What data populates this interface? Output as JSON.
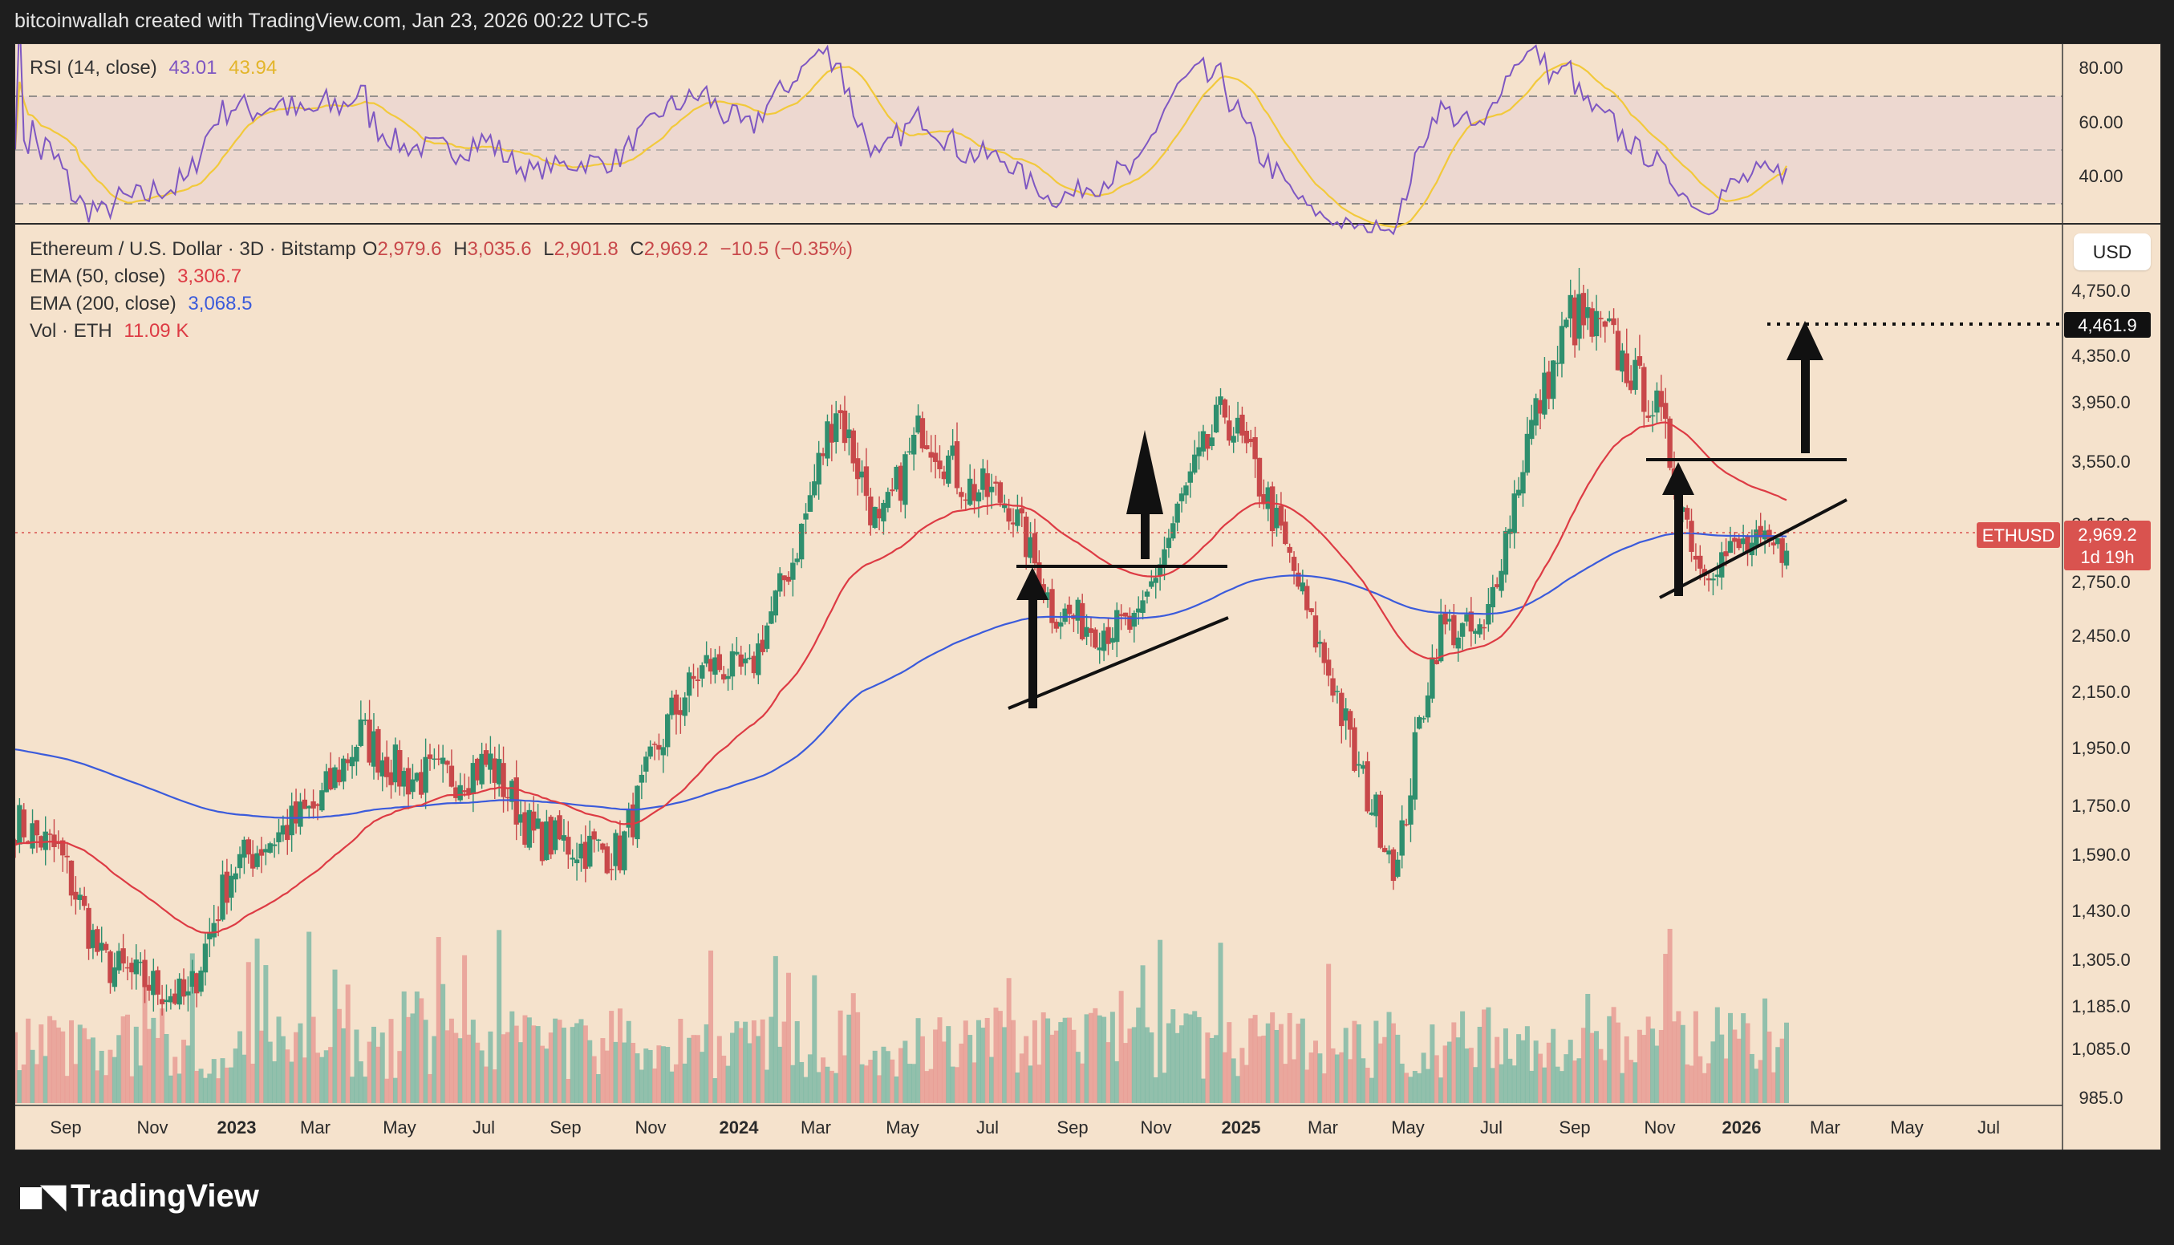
{
  "header": {
    "text": "bitcoinwallah created with TradingView.com, Jan 23, 2026 00:22 UTC-5"
  },
  "rsi": {
    "label": "RSI (14, close)",
    "value": "43.01",
    "ma_value": "43.94"
  },
  "main": {
    "symbol": "Ethereum / U.S. Dollar · 3D · Bitstamp",
    "o_label": "O",
    "o": "2,979.6",
    "h_label": "H",
    "h": "3,035.6",
    "l_label": "L",
    "l": "2,901.8",
    "c_label": "C",
    "c": "2,969.2",
    "change": "−10.5 (−0.35%)"
  },
  "ema50": {
    "label": "EMA (50, close)",
    "value": "3,306.7"
  },
  "ema200": {
    "label": "EMA (200, close)",
    "value": "3,068.5"
  },
  "vol": {
    "label": "Vol · ETH",
    "value": "11.09 K"
  },
  "currency_button": "USD",
  "footer": {
    "brand": "TradingView"
  },
  "price_tags": {
    "target": "4,461.9",
    "symbol": "ETHUSD",
    "last": "2,969.2",
    "countdown": "1d 19h"
  },
  "colors": {
    "up": "#2f8f6e",
    "down": "#c8484a",
    "ema50": "#dd3b44",
    "ema200": "#3b5bdb",
    "rsi": "#7e57c2",
    "rsi_ma": "#f2c93b",
    "vol_up": "#79b8a4",
    "vol_down": "#e79891"
  },
  "chart_data": {
    "type": "candlestick",
    "title": "Ethereum / U.S. Dollar · 3D · Bitstamp",
    "x_ticks": [
      "Sep",
      "Nov",
      "2023",
      "Mar",
      "May",
      "Jul",
      "Sep",
      "Nov",
      "2024",
      "Mar",
      "May",
      "Jul",
      "Sep",
      "Nov",
      "2025",
      "Mar",
      "May",
      "Jul",
      "Sep",
      "Nov",
      "2026",
      "Mar",
      "May",
      "Jul"
    ],
    "y_ticks": [
      "985.0",
      "1,085.0",
      "1,185.0",
      "1,305.0",
      "1,430.0",
      "1,590.0",
      "1,750.0",
      "1,950.0",
      "2,150.0",
      "2,450.0",
      "2,750.0",
      "3,150.0",
      "3,550.0",
      "3,950.0",
      "4,350.0",
      "4,750.0"
    ],
    "rsi_ticks": [
      "80.00",
      "60.00",
      "40.00"
    ],
    "rsi_last": 43.01,
    "rsi_ma_last": 43.94,
    "last_close": 2969.2,
    "ema50_last": 3306.7,
    "ema200_last": 3068.5,
    "target_price": 4461.9,
    "price_path": [
      {
        "date": "Aug 2022",
        "close": 1700
      },
      {
        "date": "Sep 2022",
        "close": 1600
      },
      {
        "date": "Oct 2022",
        "close": 1300
      },
      {
        "date": "Nov 2022",
        "close": 1250
      },
      {
        "date": "Dec 2022",
        "close": 1200
      },
      {
        "date": "Jan 2023",
        "close": 1550
      },
      {
        "date": "Feb 2023",
        "close": 1650
      },
      {
        "date": "Mar 2023",
        "close": 1750
      },
      {
        "date": "Apr 2023",
        "close": 2000
      },
      {
        "date": "May 2023",
        "close": 1850
      },
      {
        "date": "Jun 2023",
        "close": 1850
      },
      {
        "date": "Jul 2023",
        "close": 1900
      },
      {
        "date": "Aug 2023",
        "close": 1650
      },
      {
        "date": "Sep 2023",
        "close": 1620
      },
      {
        "date": "Oct 2023",
        "close": 1600
      },
      {
        "date": "Nov 2023",
        "close": 2000
      },
      {
        "date": "Dec 2023",
        "close": 2300
      },
      {
        "date": "Jan 2024",
        "close": 2250
      },
      {
        "date": "Feb 2024",
        "close": 2900
      },
      {
        "date": "Mar 2024",
        "close": 3950
      },
      {
        "date": "Apr 2024",
        "close": 3100
      },
      {
        "date": "May 2024",
        "close": 3800
      },
      {
        "date": "Jun 2024",
        "close": 3400
      },
      {
        "date": "Jul 2024",
        "close": 3300
      },
      {
        "date": "Aug 2024",
        "close": 2600
      },
      {
        "date": "Sep 2024",
        "close": 2500
      },
      {
        "date": "Oct 2024",
        "close": 2500
      },
      {
        "date": "Nov 2024",
        "close": 3300
      },
      {
        "date": "Dec 2024",
        "close": 3900
      },
      {
        "date": "Jan 2025",
        "close": 3300
      },
      {
        "date": "Feb 2025",
        "close": 2500
      },
      {
        "date": "Mar 2025",
        "close": 1900
      },
      {
        "date": "Apr 2025",
        "close": 1550
      },
      {
        "date": "May 2025",
        "close": 2500
      },
      {
        "date": "Jun 2025",
        "close": 2450
      },
      {
        "date": "Jul 2025",
        "close": 3700
      },
      {
        "date": "Aug 2025",
        "close": 4600
      },
      {
        "date": "Sep 2025",
        "close": 4400
      },
      {
        "date": "Oct 2025",
        "close": 3900
      },
      {
        "date": "Nov 2025",
        "close": 2850
      },
      {
        "date": "Dec 2025",
        "close": 3000
      },
      {
        "date": "Jan 2026",
        "close": 2969.2
      }
    ]
  }
}
